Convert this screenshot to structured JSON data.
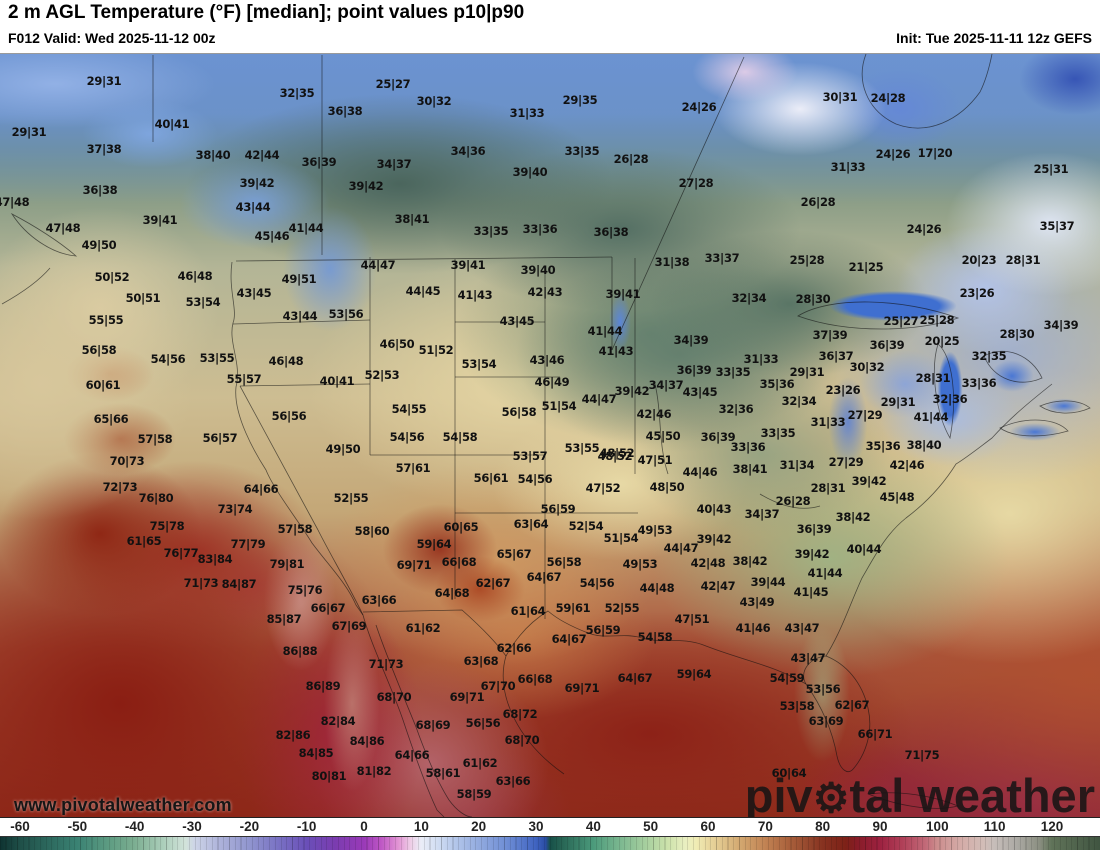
{
  "header": {
    "title": "2 m AGL Temperature (°F) [median]; point values p10|p90",
    "valid": "F012 Valid: Wed 2025-11-12 00z",
    "init": "Init: Tue 2025-11-11 12z GEFS"
  },
  "watermarks": {
    "url": "www.pivotalweather.com",
    "brand_pre": "piv",
    "brand_gear_icon": "⚙",
    "brand_post": "tal weather"
  },
  "colorbar": {
    "unit": "°F",
    "ticks": [
      -60,
      -50,
      -40,
      -30,
      -20,
      -10,
      0,
      10,
      20,
      30,
      40,
      50,
      60,
      70,
      80,
      90,
      100,
      110,
      120
    ],
    "stop_colors": {
      "-60": "#1f4f48",
      "-40": "#7cae91",
      "-30": "#d2e3da",
      "-20": "#9196cf",
      "-10": "#6a4fb8",
      "0": "#9a3ab8",
      "10": "#eaedf7",
      "20": "#93abdf",
      "30": "#4064c1",
      "33": "#175049",
      "40": "#4b9a7b",
      "50": "#aed3a1",
      "60": "#e9d89f",
      "70": "#c18253",
      "80": "#873220",
      "90": "#9d2140",
      "100": "#cc8d8d",
      "110": "#c6bdb9",
      "120": "#607359"
    }
  },
  "map": {
    "points": [
      [
        "29|31",
        104,
        81
      ],
      [
        "32|35",
        297,
        93
      ],
      [
        "36|38",
        345,
        111
      ],
      [
        "29|31",
        29,
        132
      ],
      [
        "40|41",
        172,
        124
      ],
      [
        "37|38",
        104,
        149
      ],
      [
        "38|40",
        213,
        155
      ],
      [
        "42|44",
        262,
        155
      ],
      [
        "36|39",
        319,
        162
      ],
      [
        "39|42",
        257,
        183
      ],
      [
        "36|38",
        100,
        190
      ],
      [
        "43|44",
        253,
        207
      ],
      [
        "47|48",
        12,
        202
      ],
      [
        "39|41",
        160,
        220
      ],
      [
        "47|48",
        63,
        228
      ],
      [
        "45|46",
        272,
        236
      ],
      [
        "41|44",
        306,
        228
      ],
      [
        "49|50",
        99,
        245
      ],
      [
        "39|42",
        366,
        186
      ],
      [
        "25|27",
        393,
        84
      ],
      [
        "30|32",
        434,
        101
      ],
      [
        "31|33",
        527,
        113
      ],
      [
        "29|35",
        580,
        100
      ],
      [
        "24|26",
        699,
        107
      ],
      [
        "34|36",
        468,
        151
      ],
      [
        "33|35",
        582,
        151
      ],
      [
        "26|28",
        631,
        159
      ],
      [
        "34|37",
        394,
        164
      ],
      [
        "39|40",
        530,
        172
      ],
      [
        "27|28",
        696,
        183
      ],
      [
        "38|41",
        412,
        219
      ],
      [
        "33|35",
        491,
        231
      ],
      [
        "33|36",
        540,
        229
      ],
      [
        "36|38",
        611,
        232
      ],
      [
        "30|31",
        840,
        97
      ],
      [
        "24|28",
        888,
        98
      ],
      [
        "24|26",
        893,
        154
      ],
      [
        "17|20",
        935,
        153
      ],
      [
        "31|33",
        848,
        167
      ],
      [
        "25|31",
        1051,
        169
      ],
      [
        "26|28",
        818,
        202
      ],
      [
        "24|26",
        924,
        229
      ],
      [
        "35|37",
        1057,
        226
      ],
      [
        "50|52",
        112,
        277
      ],
      [
        "46|48",
        195,
        276
      ],
      [
        "49|51",
        299,
        279
      ],
      [
        "43|45",
        254,
        293
      ],
      [
        "50|51",
        143,
        298
      ],
      [
        "53|54",
        203,
        302
      ],
      [
        "43|44",
        300,
        316
      ],
      [
        "53|56",
        346,
        314
      ],
      [
        "55|55",
        106,
        320
      ],
      [
        "56|58",
        99,
        350
      ],
      [
        "54|56",
        168,
        359
      ],
      [
        "53|55",
        217,
        358
      ],
      [
        "46|48",
        286,
        361
      ],
      [
        "40|41",
        337,
        381
      ],
      [
        "55|57",
        244,
        379
      ],
      [
        "60|61",
        103,
        385
      ],
      [
        "56|56",
        289,
        416
      ],
      [
        "65|66",
        111,
        419
      ],
      [
        "57|58",
        155,
        439
      ],
      [
        "56|57",
        220,
        438
      ],
      [
        "49|50",
        343,
        449
      ],
      [
        "44|47",
        378,
        265
      ],
      [
        "39|41",
        468,
        265
      ],
      [
        "39|40",
        538,
        270
      ],
      [
        "31|38",
        672,
        262
      ],
      [
        "33|37",
        722,
        258
      ],
      [
        "44|45",
        423,
        291
      ],
      [
        "41|43",
        475,
        295
      ],
      [
        "42|43",
        545,
        292
      ],
      [
        "39|41",
        623,
        294
      ],
      [
        "43|45",
        517,
        321
      ],
      [
        "41|44",
        605,
        331
      ],
      [
        "46|50",
        397,
        344
      ],
      [
        "51|52",
        436,
        350
      ],
      [
        "34|39",
        691,
        340
      ],
      [
        "41|43",
        616,
        351
      ],
      [
        "53|54",
        479,
        364
      ],
      [
        "52|53",
        382,
        375
      ],
      [
        "43|46",
        547,
        360
      ],
      [
        "36|39",
        694,
        370
      ],
      [
        "33|35",
        733,
        372
      ],
      [
        "46|49",
        552,
        382
      ],
      [
        "34|37",
        666,
        385
      ],
      [
        "39|42",
        632,
        391
      ],
      [
        "43|45",
        700,
        392
      ],
      [
        "44|47",
        599,
        399
      ],
      [
        "51|54",
        559,
        406
      ],
      [
        "54|55",
        409,
        409
      ],
      [
        "56|58",
        519,
        412
      ],
      [
        "42|46",
        654,
        414
      ],
      [
        "32|36",
        736,
        409
      ],
      [
        "54|56",
        407,
        437
      ],
      [
        "54|58",
        460,
        437
      ],
      [
        "45|50",
        663,
        436
      ],
      [
        "36|39",
        718,
        437
      ],
      [
        "53|55",
        582,
        448
      ],
      [
        "48|52",
        617,
        453
      ],
      [
        "25|28",
        807,
        260
      ],
      [
        "21|25",
        866,
        267
      ],
      [
        "20|23",
        979,
        260
      ],
      [
        "28|31",
        1023,
        260
      ],
      [
        "32|34",
        749,
        298
      ],
      [
        "28|30",
        813,
        299
      ],
      [
        "23|26",
        977,
        293
      ],
      [
        "25|27",
        901,
        321
      ],
      [
        "25|28",
        937,
        320
      ],
      [
        "34|39",
        1061,
        325
      ],
      [
        "37|39",
        830,
        335
      ],
      [
        "28|30",
        1017,
        334
      ],
      [
        "36|39",
        887,
        345
      ],
      [
        "20|25",
        942,
        341
      ],
      [
        "36|37",
        836,
        356
      ],
      [
        "31|33",
        761,
        359
      ],
      [
        "32|35",
        989,
        356
      ],
      [
        "30|32",
        867,
        367
      ],
      [
        "29|31",
        807,
        372
      ],
      [
        "35|36",
        777,
        384
      ],
      [
        "28|31",
        933,
        378
      ],
      [
        "33|36",
        979,
        383
      ],
      [
        "23|26",
        843,
        390
      ],
      [
        "32|34",
        799,
        401
      ],
      [
        "29|31",
        898,
        402
      ],
      [
        "32|36",
        950,
        399
      ],
      [
        "27|29",
        865,
        415
      ],
      [
        "31|33",
        828,
        422
      ],
      [
        "41|44",
        931,
        417
      ],
      [
        "33|35",
        778,
        433
      ],
      [
        "33|36",
        748,
        447
      ],
      [
        "35|36",
        883,
        446
      ],
      [
        "38|40",
        924,
        445
      ],
      [
        "70|73",
        127,
        461
      ],
      [
        "72|73",
        120,
        487
      ],
      [
        "76|80",
        156,
        498
      ],
      [
        "64|66",
        261,
        489
      ],
      [
        "52|55",
        351,
        498
      ],
      [
        "73|74",
        235,
        509
      ],
      [
        "75|78",
        167,
        526
      ],
      [
        "57|58",
        295,
        529
      ],
      [
        "61|65",
        144,
        541
      ],
      [
        "77|79",
        248,
        544
      ],
      [
        "76|77",
        181,
        553
      ],
      [
        "83|84",
        215,
        559
      ],
      [
        "79|81",
        287,
        564
      ],
      [
        "71|73",
        201,
        583
      ],
      [
        "84|87",
        239,
        584
      ],
      [
        "75|76",
        305,
        590
      ],
      [
        "66|67",
        328,
        608
      ],
      [
        "85|87",
        284,
        619
      ],
      [
        "67|69",
        349,
        626
      ],
      [
        "58|60",
        372,
        531
      ],
      [
        "53|57",
        530,
        456
      ],
      [
        "48|52",
        615,
        456
      ],
      [
        "47|51",
        655,
        460
      ],
      [
        "57|61",
        413,
        468
      ],
      [
        "44|46",
        700,
        472
      ],
      [
        "56|61",
        491,
        478
      ],
      [
        "54|56",
        535,
        479
      ],
      [
        "47|52",
        603,
        488
      ],
      [
        "48|50",
        667,
        487
      ],
      [
        "56|59",
        558,
        509
      ],
      [
        "40|43",
        714,
        509
      ],
      [
        "63|64",
        531,
        524
      ],
      [
        "52|54",
        586,
        526
      ],
      [
        "60|65",
        461,
        527
      ],
      [
        "59|64",
        434,
        544
      ],
      [
        "51|54",
        621,
        538
      ],
      [
        "49|53",
        655,
        530
      ],
      [
        "39|42",
        714,
        539
      ],
      [
        "44|47",
        681,
        548
      ],
      [
        "69|71",
        414,
        565
      ],
      [
        "66|68",
        459,
        562
      ],
      [
        "65|67",
        514,
        554
      ],
      [
        "56|58",
        564,
        562
      ],
      [
        "42|48",
        708,
        563
      ],
      [
        "64|67",
        544,
        577
      ],
      [
        "62|67",
        493,
        583
      ],
      [
        "54|56",
        597,
        583
      ],
      [
        "44|48",
        657,
        588
      ],
      [
        "42|47",
        718,
        586
      ],
      [
        "64|68",
        452,
        593
      ],
      [
        "49|53",
        640,
        564
      ],
      [
        "63|66",
        379,
        600
      ],
      [
        "59|61",
        573,
        608
      ],
      [
        "52|55",
        622,
        608
      ],
      [
        "61|64",
        528,
        611
      ],
      [
        "47|51",
        692,
        619
      ],
      [
        "61|62",
        423,
        628
      ],
      [
        "56|59",
        603,
        630
      ],
      [
        "54|58",
        655,
        637
      ],
      [
        "64|67",
        569,
        639
      ],
      [
        "62|66",
        514,
        648
      ],
      [
        "38|41",
        750,
        469
      ],
      [
        "31|34",
        797,
        465
      ],
      [
        "27|29",
        846,
        462
      ],
      [
        "39|42",
        869,
        481
      ],
      [
        "42|46",
        907,
        465
      ],
      [
        "28|31",
        828,
        488
      ],
      [
        "26|28",
        793,
        501
      ],
      [
        "34|37",
        762,
        514
      ],
      [
        "45|48",
        897,
        497
      ],
      [
        "38|42",
        853,
        517
      ],
      [
        "36|39",
        814,
        529
      ],
      [
        "40|44",
        864,
        549
      ],
      [
        "39|42",
        812,
        554
      ],
      [
        "38|42",
        750,
        561
      ],
      [
        "41|44",
        825,
        573
      ],
      [
        "39|44",
        768,
        582
      ],
      [
        "41|45",
        811,
        592
      ],
      [
        "43|49",
        757,
        602
      ],
      [
        "41|46",
        753,
        628
      ],
      [
        "43|47",
        802,
        628
      ],
      [
        "43|47",
        808,
        658
      ],
      [
        "86|88",
        300,
        651
      ],
      [
        "86|89",
        323,
        686
      ],
      [
        "82|84",
        338,
        721
      ],
      [
        "82|86",
        293,
        735
      ],
      [
        "84|85",
        316,
        753
      ],
      [
        "84|86",
        367,
        741
      ],
      [
        "80|81",
        329,
        776
      ],
      [
        "81|82",
        374,
        771
      ],
      [
        "71|73",
        386,
        664
      ],
      [
        "63|68",
        481,
        661
      ],
      [
        "66|68",
        535,
        679
      ],
      [
        "64|67",
        635,
        678
      ],
      [
        "59|64",
        694,
        674
      ],
      [
        "67|70",
        498,
        686
      ],
      [
        "69|71",
        582,
        688
      ],
      [
        "68|70",
        394,
        697
      ],
      [
        "69|71",
        467,
        697
      ],
      [
        "68|72",
        520,
        714
      ],
      [
        "68|69",
        433,
        725
      ],
      [
        "56|56",
        483,
        723
      ],
      [
        "68|70",
        522,
        740
      ],
      [
        "64|66",
        412,
        755
      ],
      [
        "61|62",
        480,
        763
      ],
      [
        "58|61",
        443,
        773
      ],
      [
        "63|66",
        513,
        781
      ],
      [
        "58|59",
        474,
        794
      ],
      [
        "54|59",
        787,
        678
      ],
      [
        "53|56",
        823,
        689
      ],
      [
        "53|58",
        797,
        706
      ],
      [
        "62|67",
        852,
        705
      ],
      [
        "63|69",
        826,
        721
      ],
      [
        "66|71",
        875,
        734
      ],
      [
        "71|75",
        922,
        755
      ],
      [
        "60|64",
        789,
        773
      ]
    ]
  }
}
